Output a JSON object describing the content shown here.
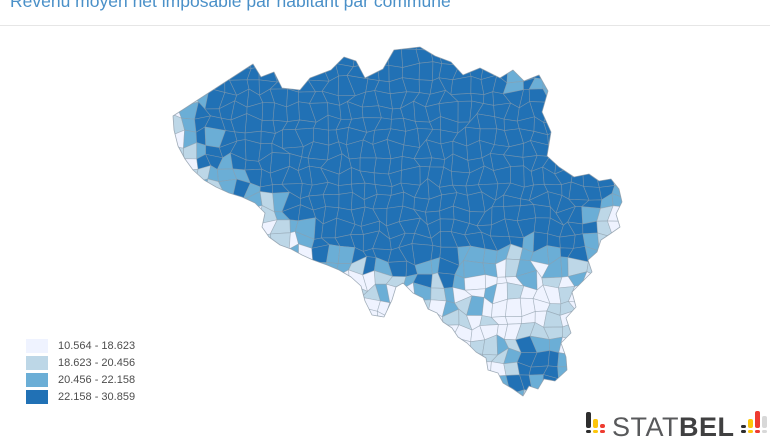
{
  "header": {
    "title": "Revenu moyen net imposable par habitant par commune"
  },
  "colors": {
    "title": "#4a90c8",
    "divider": "#e6e6e6",
    "map_border": "#8b9aa8",
    "scale": [
      "#eff3ff",
      "#bdd7e7",
      "#6baed6",
      "#2171b5"
    ]
  },
  "legend": {
    "items": [
      {
        "label": "10.564 - 18.623",
        "color": "#eff3ff"
      },
      {
        "label": "18.623 - 20.456",
        "color": "#bdd7e7"
      },
      {
        "label": "20.456 - 22.158",
        "color": "#6baed6"
      },
      {
        "label": "22.158 - 30.859",
        "color": "#2171b5"
      }
    ]
  },
  "map": {
    "type": "choropleth",
    "region": "Belgique",
    "unit": "commune",
    "class_breaks": [
      10.564,
      18.623,
      20.456,
      22.158,
      30.859
    ]
  },
  "logo": {
    "stat": "STAT",
    "bel": "BEL",
    "bar_colors": {
      "black": "#2e2e2e",
      "yellow": "#fdc60b",
      "red": "#ee3b30",
      "gray": "#d8d8d8"
    }
  }
}
